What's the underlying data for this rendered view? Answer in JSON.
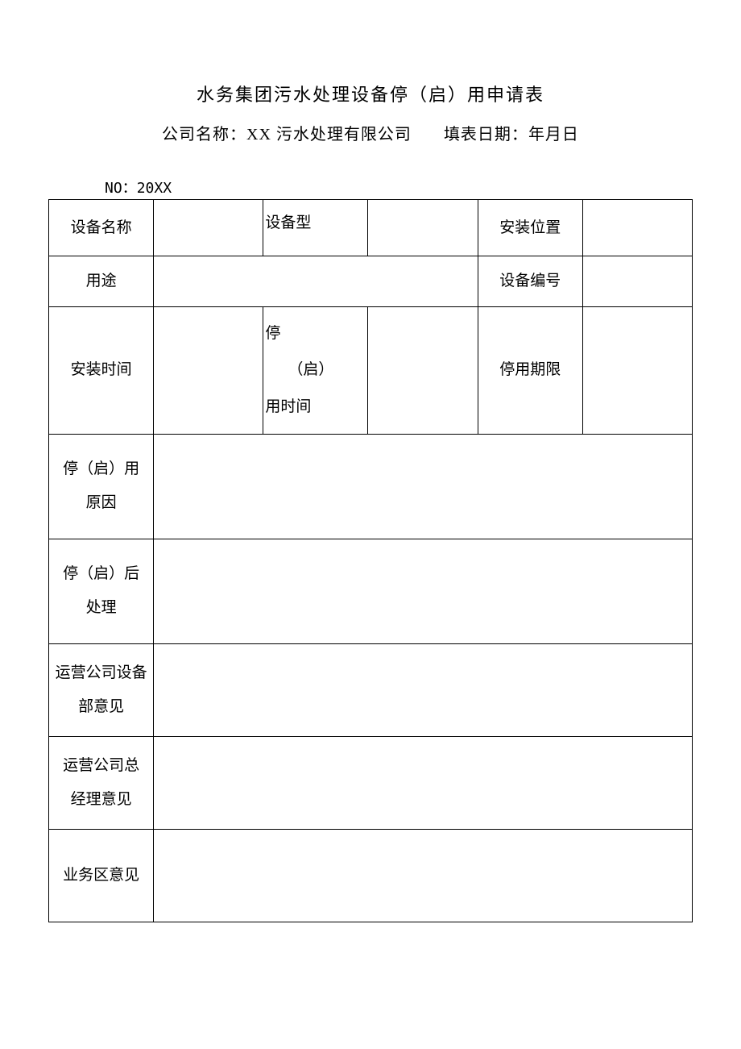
{
  "title": "水务集团污水处理设备停（启）用申请表",
  "company_label": "公司名称：",
  "company_name": "XX 污水处理有限公司",
  "fill_date_label": "填表日期：",
  "fill_date_value": "年月日",
  "no_label": "NO：",
  "no_value": "20XX",
  "table": {
    "device_name_label": "设备名称",
    "device_name_value": "",
    "device_model_label": "设备型",
    "device_model_value": "",
    "install_position_label": "安装位置",
    "install_position_value": "",
    "purpose_label": "用途",
    "purpose_value": "",
    "device_number_label": "设备编号",
    "device_number_value": "",
    "install_time_label": "安装时间",
    "install_time_value": "",
    "stop_start_time_line1": "停",
    "stop_start_time_line2": "（启）",
    "stop_start_time_line3": "用时间",
    "stop_start_time_value": "",
    "stop_period_label": "停用期限",
    "stop_period_value": "",
    "stop_reason_line1": "停（启）用",
    "stop_reason_line2": "原因",
    "stop_reason_value": "",
    "after_stop_line1": "停（启）后",
    "after_stop_line2": "处理",
    "after_stop_value": "",
    "dept_opinion_line1": "运营公司设备",
    "dept_opinion_line2": "部意见",
    "dept_opinion_value": "",
    "manager_opinion_line1": "运营公司总",
    "manager_opinion_line2": "经理意见",
    "manager_opinion_value": "",
    "business_opinion_label": "业务区意见",
    "business_opinion_value": ""
  },
  "colors": {
    "text": "#000000",
    "border": "#000000",
    "background": "#ffffff"
  }
}
